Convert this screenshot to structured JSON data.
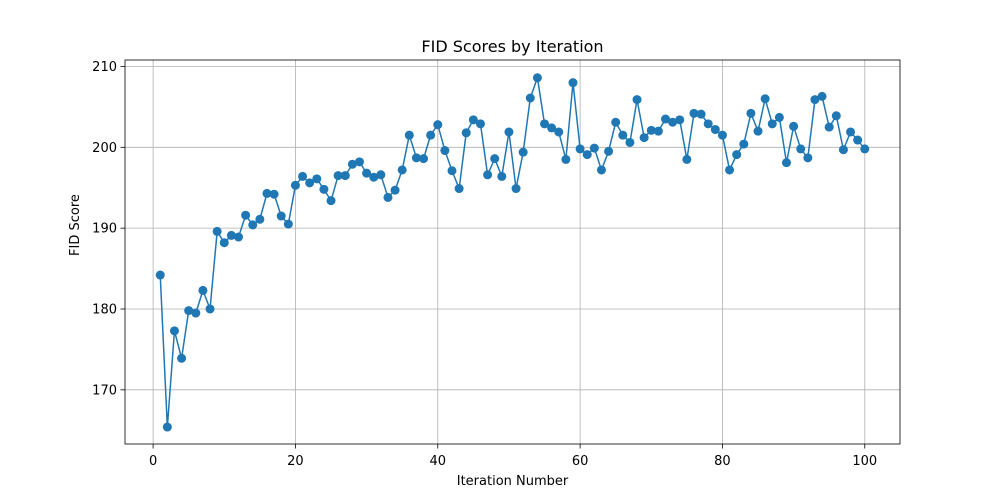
{
  "chart_data": {
    "type": "line",
    "title": "FID Scores by Iteration",
    "xlabel": "Iteration Number",
    "ylabel": "FID Score",
    "xlim": [
      -3.95,
      104.95
    ],
    "ylim": [
      163.3,
      210.8
    ],
    "xticks": [
      0,
      20,
      40,
      60,
      80,
      100
    ],
    "yticks": [
      170,
      180,
      190,
      200,
      210
    ],
    "grid": true,
    "legend": "none",
    "colors": {
      "series": "#1f77b4",
      "grid": "#b0b0b0",
      "axis": "#000000"
    },
    "series": [
      {
        "x": [
          1,
          2,
          3,
          4,
          5,
          6,
          7,
          8,
          9,
          10,
          11,
          12,
          13,
          14,
          15,
          16,
          17,
          18,
          19,
          20,
          21,
          22,
          23,
          24,
          25,
          26,
          27,
          28,
          29,
          30,
          31,
          32,
          33,
          34,
          35,
          36,
          37,
          38,
          39,
          40,
          41,
          42,
          43,
          44,
          45,
          46,
          47,
          48,
          49,
          50,
          51,
          52,
          53,
          54,
          55,
          56,
          57,
          58,
          59,
          60,
          61,
          62,
          63,
          64,
          65,
          66,
          67,
          68,
          69,
          70,
          71,
          72,
          73,
          74,
          75,
          76,
          77,
          78,
          79,
          80,
          81,
          82,
          83,
          84,
          85,
          86,
          87,
          88,
          89,
          90,
          91,
          92,
          93,
          94,
          95,
          96,
          97,
          98,
          99,
          100
        ],
        "values": [
          184.2,
          165.4,
          177.3,
          173.9,
          179.8,
          179.5,
          182.3,
          180.0,
          189.6,
          188.2,
          189.1,
          188.9,
          191.6,
          190.4,
          191.1,
          194.3,
          194.2,
          191.5,
          190.5,
          195.3,
          196.4,
          195.6,
          196.1,
          194.8,
          193.4,
          196.5,
          196.5,
          197.9,
          198.2,
          196.8,
          196.3,
          196.6,
          193.8,
          194.7,
          197.2,
          201.5,
          198.7,
          198.6,
          201.5,
          202.8,
          199.6,
          197.1,
          194.9,
          201.8,
          203.4,
          202.9,
          196.6,
          198.6,
          196.4,
          201.9,
          194.9,
          199.4,
          206.1,
          208.6,
          202.9,
          202.4,
          201.9,
          198.5,
          208.0,
          199.8,
          199.1,
          199.9,
          197.2,
          199.5,
          203.1,
          201.5,
          200.6,
          205.9,
          201.2,
          202.1,
          202.0,
          203.5,
          203.1,
          203.4,
          198.5,
          204.2,
          204.1,
          202.9,
          202.2,
          201.5,
          197.2,
          199.1,
          200.4,
          204.2,
          202.0,
          206.0,
          202.9,
          203.7,
          198.1,
          202.6,
          199.8,
          198.7,
          205.9,
          206.3,
          202.5,
          203.9,
          199.7,
          201.9,
          200.9,
          199.8
        ]
      }
    ]
  }
}
